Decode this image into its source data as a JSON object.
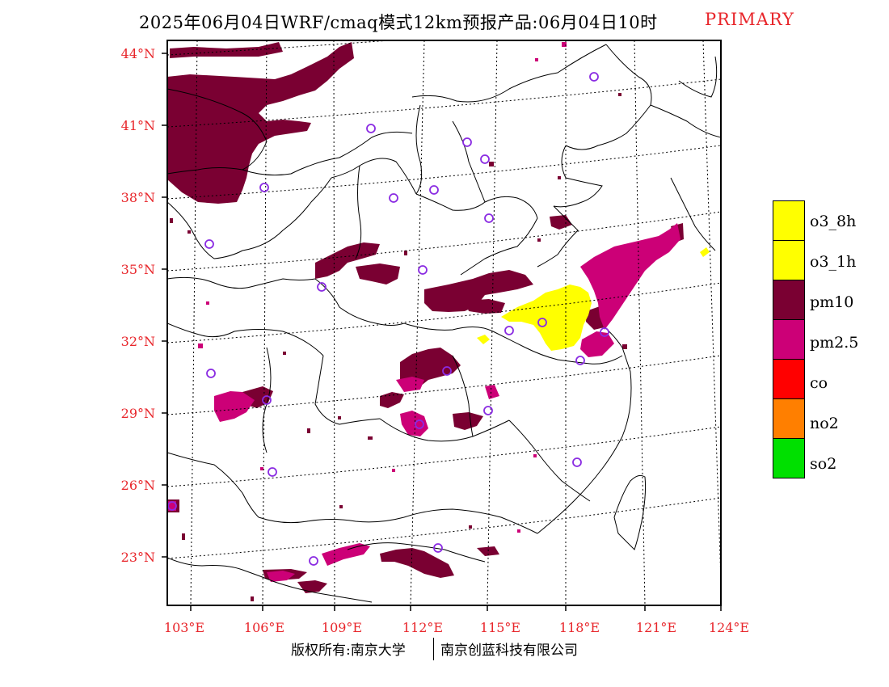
{
  "header": {
    "title": "2025年06月04日WRF/cmaq模式12km预报产品:06月04日10时",
    "tag": "PRIMARY"
  },
  "map": {
    "lat_labels": [
      "44°N",
      "41°N",
      "38°N",
      "35°N",
      "32°N",
      "29°N",
      "26°N",
      "23°N"
    ],
    "lon_labels": [
      "103°E",
      "106°E",
      "109°E",
      "112°E",
      "115°E",
      "118°E",
      "121°E",
      "124°E"
    ],
    "colors": {
      "o3_8h": "#ffff00",
      "o3_1h": "#ffff00",
      "pm10": "#7a0032",
      "pm25": "#cc0077",
      "co": "#ff0000",
      "no2": "#ff7f00",
      "so2": "#00e000",
      "station": "#8a2be2",
      "label": "#e8262b"
    }
  },
  "legend": {
    "items": [
      {
        "label": "o3_8h",
        "color": "#ffff00"
      },
      {
        "label": "o3_1h",
        "color": "#ffff00"
      },
      {
        "label": "pm10",
        "color": "#7a0032"
      },
      {
        "label": "pm2.5",
        "color": "#cc0077"
      },
      {
        "label": "co",
        "color": "#ff0000"
      },
      {
        "label": "no2",
        "color": "#ff7f00"
      },
      {
        "label": "so2",
        "color": "#00e000"
      }
    ]
  },
  "footer": {
    "left": "版权所有:南京大学",
    "right": "南京创蓝科技有限公司"
  }
}
